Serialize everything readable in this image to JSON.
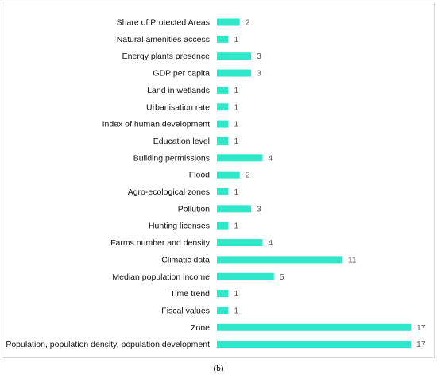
{
  "caption": "(b)",
  "chart_data": {
    "type": "bar",
    "orientation": "horizontal",
    "bar_color": "#2ee8c9",
    "grid": false,
    "legend": "none",
    "categories": [
      "Share of Protected Areas",
      "Natural amenities access",
      "Energy  plants presence",
      "GDP per capita",
      "Land in wetlands",
      "Urbanisation rate",
      "Index of human development",
      "Education level",
      "Building permissions",
      "Flood",
      "Agro-ecological zones",
      "Pollution",
      "Hunting licenses",
      "Farms number and density",
      "Climatic data",
      "Median population income",
      "Time trend",
      "Fiscal values",
      "Zone",
      "Population, population density, population development"
    ],
    "values": [
      2,
      1,
      3,
      3,
      1,
      1,
      1,
      1,
      4,
      2,
      1,
      3,
      1,
      4,
      11,
      5,
      1,
      1,
      17,
      17
    ],
    "xlim": [
      0,
      17
    ]
  }
}
